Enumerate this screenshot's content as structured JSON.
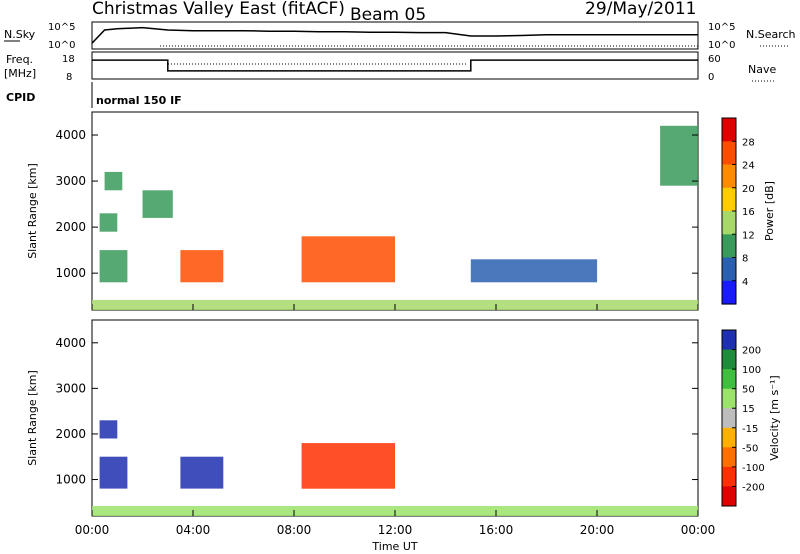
{
  "chart_data": [
    {
      "type": "line",
      "panel": "noise",
      "title": "Christmas Valley East (fitACF)",
      "beam_label": "Beam 05",
      "date": "29/May/2011",
      "left_label": "N.Sky",
      "right_label": "N.Search",
      "left_ticks": [
        "10^5",
        "10^0"
      ],
      "right_ticks": [
        "10^5",
        "10^0"
      ],
      "series": [
        {
          "name": "N.Sky",
          "x_hours": [
            0,
            0.5,
            1,
            2,
            3,
            4,
            5,
            6,
            7,
            8,
            9,
            10,
            11,
            12,
            13,
            14,
            15,
            16,
            17,
            18,
            19,
            20,
            21,
            22,
            23,
            24
          ],
          "y_level": [
            0.2,
            0.75,
            0.8,
            0.85,
            0.75,
            0.72,
            0.72,
            0.72,
            0.7,
            0.7,
            0.68,
            0.68,
            0.66,
            0.66,
            0.64,
            0.64,
            0.5,
            0.5,
            0.52,
            0.55,
            0.55,
            0.55,
            0.55,
            0.55,
            0.55,
            0.55
          ]
        }
      ]
    },
    {
      "type": "line",
      "panel": "frequency",
      "left_label": "Freq.",
      "left_unit": "[MHz]",
      "right_label": "Nave",
      "left_ticks": [
        "18",
        "8"
      ],
      "right_ticks": [
        "60",
        "0"
      ],
      "series": [
        {
          "name": "Freq.",
          "x_hours": [
            0,
            3,
            3,
            15,
            15,
            24
          ],
          "values": [
            15,
            15,
            11,
            11,
            15,
            15
          ]
        }
      ]
    },
    {
      "type": "text",
      "panel": "cpid",
      "left_label": "CPID",
      "value": "normal 150 IF"
    },
    {
      "type": "heatmap",
      "panel": "power",
      "ylabel": "Slant Range [km]",
      "yticks": [
        "4000",
        "3000",
        "2000",
        "1000"
      ],
      "ylim": [
        200,
        4500
      ],
      "colorbar_label": "Power [dB]",
      "colorbar_ticks": [
        "28",
        "24",
        "20",
        "16",
        "12",
        "8",
        "4"
      ],
      "colorbar_colors": [
        "#e00000",
        "#ff4d00",
        "#ff8c00",
        "#ffcc00",
        "#a6d96a",
        "#3a9a5a",
        "#2b5fb0",
        "#1a1aff"
      ],
      "regions": [
        {
          "t0": 0.3,
          "t1": 1.4,
          "r0": 800,
          "r1": 1500,
          "level": 0.35
        },
        {
          "t0": 0.3,
          "t1": 1.0,
          "r0": 1900,
          "r1": 2300,
          "level": 0.3
        },
        {
          "t0": 0.5,
          "t1": 1.2,
          "r0": 2800,
          "r1": 3200,
          "level": 0.3
        },
        {
          "t0": 2.0,
          "t1": 3.2,
          "r0": 2200,
          "r1": 2800,
          "level": 0.25
        },
        {
          "t0": 3.5,
          "t1": 5.2,
          "r0": 800,
          "r1": 1500,
          "level": 0.85
        },
        {
          "t0": 8.3,
          "t1": 12.0,
          "r0": 800,
          "r1": 1800,
          "level": 0.9
        },
        {
          "t0": 15.0,
          "t1": 20.0,
          "r0": 800,
          "r1": 1300,
          "level": 0.2
        },
        {
          "t0": 22.5,
          "t1": 24.0,
          "r0": 2900,
          "r1": 4200,
          "level": 0.3
        },
        {
          "t0": 0.0,
          "t1": 24.0,
          "r0": 200,
          "r1": 420,
          "level": 0.4
        }
      ]
    },
    {
      "type": "heatmap",
      "panel": "velocity",
      "ylabel": "Slant Range [km]",
      "yticks": [
        "4000",
        "3000",
        "2000",
        "1000"
      ],
      "ylim": [
        200,
        4500
      ],
      "xlabel": "Time UT",
      "xticks": [
        "00:00",
        "04:00",
        "08:00",
        "12:00",
        "16:00",
        "20:00",
        "00:00"
      ],
      "colorbar_label": "Velocity [m s⁻¹]",
      "colorbar_ticks": [
        "200",
        "100",
        "50",
        "15",
        "-15",
        "-50",
        "-100",
        "-200"
      ],
      "colorbar_colors": [
        "#1e2fb0",
        "#1e8c3a",
        "#3fbf3f",
        "#9be36b",
        "#bdbdbd",
        "#ffb000",
        "#ff7000",
        "#ff3000",
        "#e00000"
      ],
      "regions": [
        {
          "t0": 0.3,
          "t1": 1.4,
          "r0": 800,
          "r1": 1500,
          "level": "positive"
        },
        {
          "t0": 0.3,
          "t1": 1.0,
          "r0": 1900,
          "r1": 2300,
          "level": "positive"
        },
        {
          "t0": 3.5,
          "t1": 5.2,
          "r0": 800,
          "r1": 1500,
          "level": "positive"
        },
        {
          "t0": 8.3,
          "t1": 12.0,
          "r0": 800,
          "r1": 1800,
          "level": "negative"
        },
        {
          "t0": 0.0,
          "t1": 24.0,
          "r0": 200,
          "r1": 420,
          "level": "low"
        }
      ]
    }
  ]
}
